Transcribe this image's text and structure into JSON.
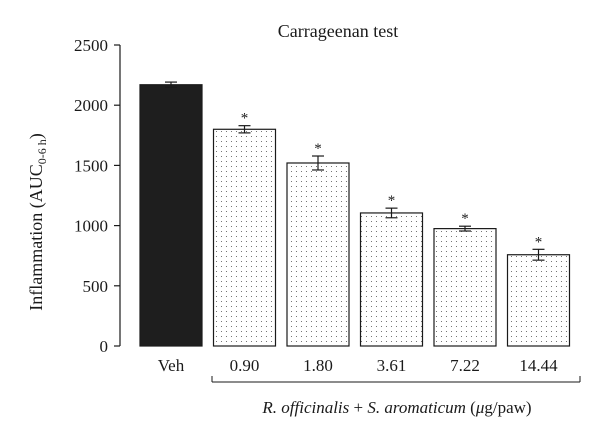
{
  "chart_data": {
    "type": "bar",
    "title": "Carrageenan test",
    "ylabel": "Inflammation (AUC",
    "ylabel_subscript": "0-6 h",
    "ylabel_close": ")",
    "ylim": [
      0,
      2500
    ],
    "yticks": [
      0,
      500,
      1000,
      1500,
      2000,
      2500
    ],
    "categories": [
      "Veh",
      "0.90",
      "1.80",
      "3.61",
      "7.22",
      "14.44"
    ],
    "values": [
      2170,
      1800,
      1520,
      1105,
      975,
      758
    ],
    "errors": [
      22,
      30,
      58,
      40,
      20,
      45
    ],
    "significance": [
      "",
      "*",
      "*",
      "*",
      "*",
      "*"
    ],
    "bar_styles": [
      "solid",
      "dotted",
      "dotted",
      "dotted",
      "dotted",
      "dotted"
    ],
    "group_label": {
      "italic_1": "R. officinalis",
      "plus": " + ",
      "italic_2": "S. aromaticum",
      "unit_open": " (",
      "unit_mu": "μ",
      "unit_rest": "g/paw)"
    },
    "colors": {
      "solid_bar": "#1e1e1e",
      "dotted_bar_fill": "#ffffff",
      "dot": "#555555",
      "axis": "#1a1a1a"
    }
  }
}
